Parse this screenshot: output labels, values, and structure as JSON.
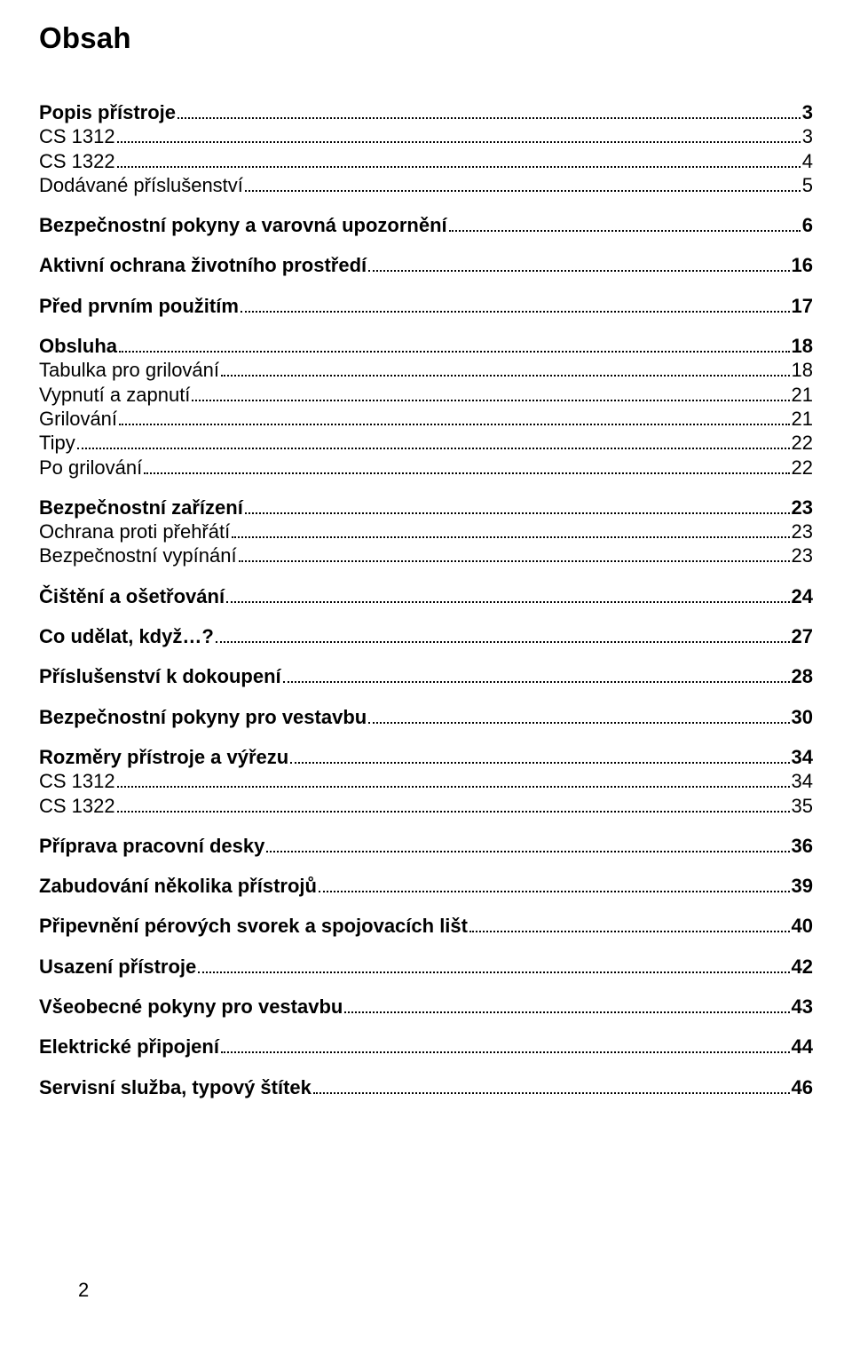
{
  "title": "Obsah",
  "page_number": "2",
  "entries": [
    {
      "level": 1,
      "label": "Popis přístroje",
      "page": "3"
    },
    {
      "level": 2,
      "label": "CS 1312",
      "page": "3"
    },
    {
      "level": 2,
      "label": "CS 1322",
      "page": "4"
    },
    {
      "level": 2,
      "label": "Dodávané příslušenství",
      "page": "5"
    },
    {
      "level": 1,
      "label": "Bezpečnostní pokyny a varovná upozornění",
      "page": "6"
    },
    {
      "level": 1,
      "label": "Aktivní ochrana životního prostředí",
      "page": "16"
    },
    {
      "level": 1,
      "label": "Před prvním použitím",
      "page": "17"
    },
    {
      "level": 1,
      "label": "Obsluha",
      "page": "18"
    },
    {
      "level": 2,
      "label": "Tabulka pro grilování",
      "page": "18"
    },
    {
      "level": 2,
      "label": "Vypnutí a zapnutí",
      "page": "21"
    },
    {
      "level": 2,
      "label": "Grilování",
      "page": "21"
    },
    {
      "level": 2,
      "label": "Tipy",
      "page": "22"
    },
    {
      "level": 2,
      "label": "Po grilování",
      "page": "22"
    },
    {
      "level": 1,
      "label": "Bezpečnostní zařízení",
      "page": "23"
    },
    {
      "level": 2,
      "label": "Ochrana proti přehřátí",
      "page": "23"
    },
    {
      "level": 2,
      "label": "Bezpečnostní vypínání",
      "page": "23"
    },
    {
      "level": 1,
      "label": "Čištění a ošetřování",
      "page": "24"
    },
    {
      "level": 1,
      "label": "Co udělat, když…?",
      "page": "27"
    },
    {
      "level": 1,
      "label": "Příslušenství k dokoupení",
      "page": "28"
    },
    {
      "level": 1,
      "label": "Bezpečnostní pokyny pro vestavbu",
      "page": "30"
    },
    {
      "level": 1,
      "label": "Rozměry přístroje a výřezu",
      "page": "34"
    },
    {
      "level": 2,
      "label": "CS 1312",
      "page": "34"
    },
    {
      "level": 2,
      "label": "CS 1322",
      "page": "35"
    },
    {
      "level": 1,
      "label": "Příprava pracovní desky",
      "page": "36"
    },
    {
      "level": 1,
      "label": "Zabudování několika přístrojů",
      "page": "39"
    },
    {
      "level": 1,
      "label": "Připevnění pérových svorek a spojovacích lišt",
      "page": "40"
    },
    {
      "level": 1,
      "label": "Usazení přístroje",
      "page": "42"
    },
    {
      "level": 1,
      "label": "Všeobecné pokyny pro vestavbu",
      "page": "43"
    },
    {
      "level": 1,
      "label": "Elektrické připojení",
      "page": "44"
    },
    {
      "level": 1,
      "label": "Servisní služba, typový štítek",
      "page": "46"
    }
  ]
}
